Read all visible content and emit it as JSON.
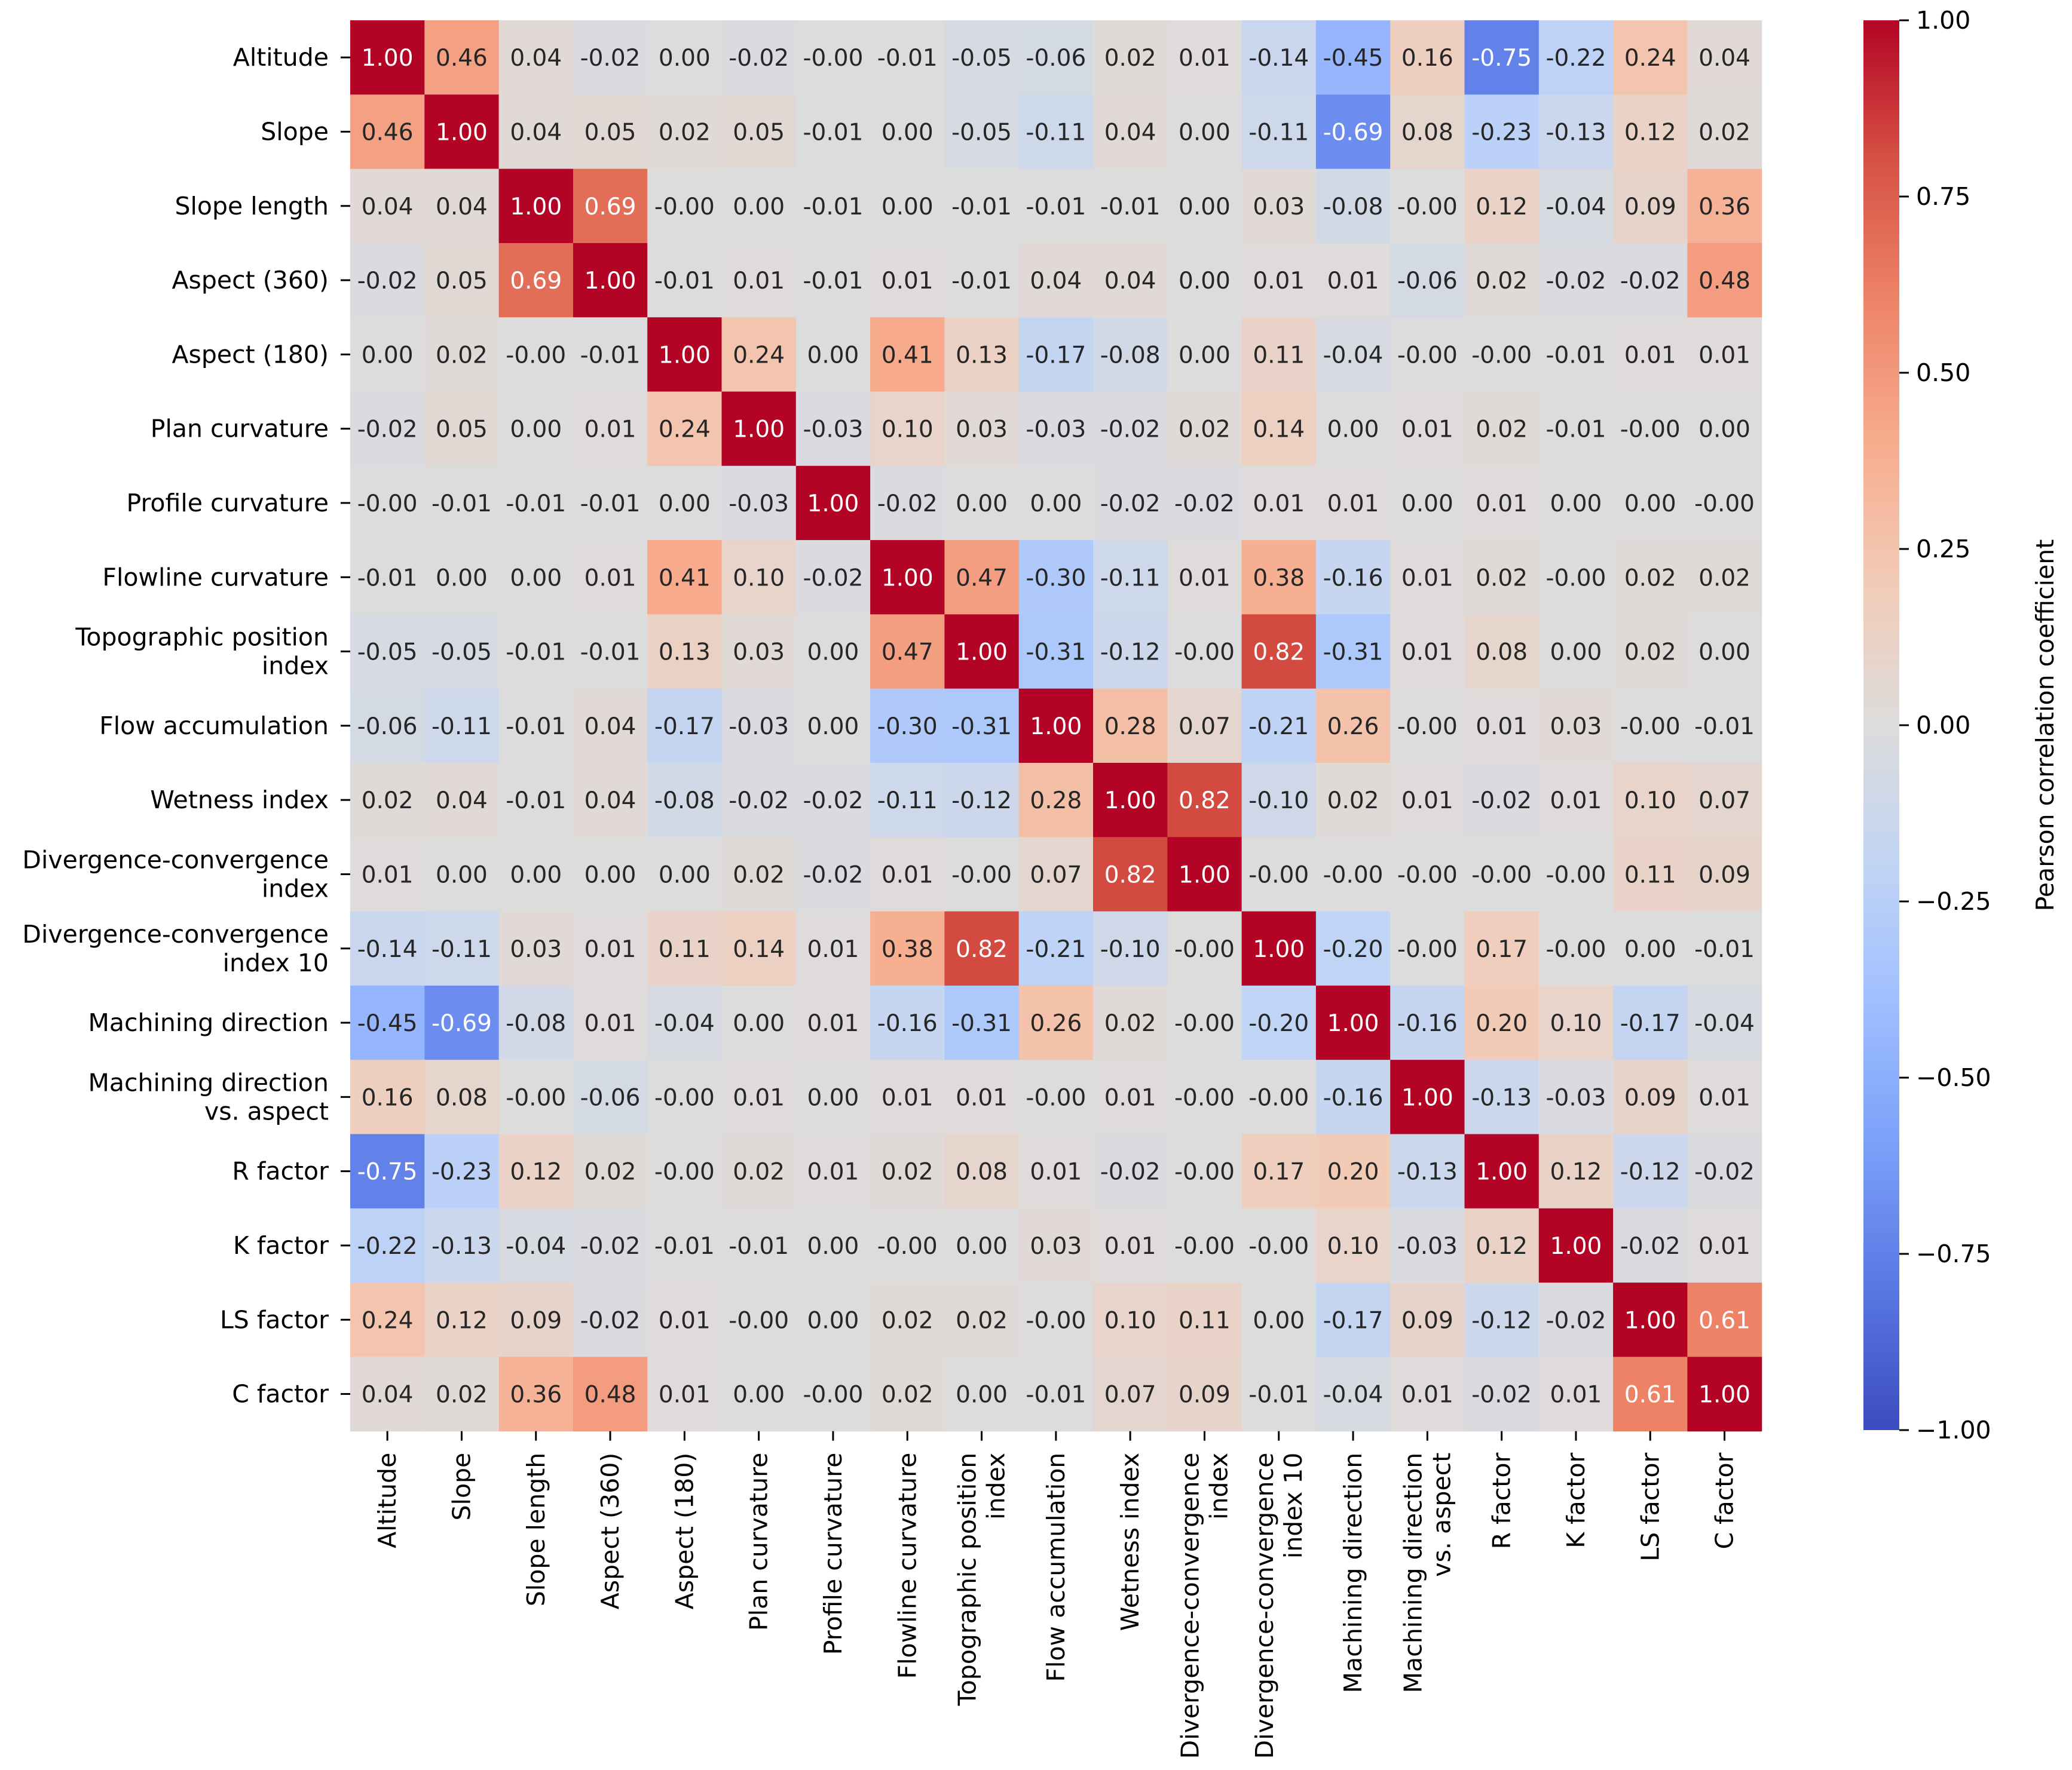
{
  "chart_data": {
    "type": "heatmap",
    "title": "",
    "row_labels": [
      [
        "Altitude"
      ],
      [
        "Slope"
      ],
      [
        "Slope length"
      ],
      [
        "Aspect (360)"
      ],
      [
        "Aspect (180)"
      ],
      [
        "Plan curvature"
      ],
      [
        "Profile curvature"
      ],
      [
        "Flowline curvature"
      ],
      [
        "Topographic position",
        "index"
      ],
      [
        "Flow accumulation"
      ],
      [
        "Wetness index"
      ],
      [
        "Divergence-convergence",
        "index"
      ],
      [
        "Divergence-convergence",
        "index 10"
      ],
      [
        "Machining direction"
      ],
      [
        "Machining direction",
        "vs. aspect"
      ],
      [
        "R factor"
      ],
      [
        "K factor"
      ],
      [
        "LS factor"
      ],
      [
        "C factor"
      ]
    ],
    "col_labels": [
      [
        "Altitude"
      ],
      [
        "Slope"
      ],
      [
        "Slope length"
      ],
      [
        "Aspect (360)"
      ],
      [
        "Aspect (180)"
      ],
      [
        "Plan curvature"
      ],
      [
        "Profile curvature"
      ],
      [
        "Flowline curvature"
      ],
      [
        "Topographic position",
        "index"
      ],
      [
        "Flow accumulation"
      ],
      [
        "Wetness index"
      ],
      [
        "Divergence-convergence",
        "index"
      ],
      [
        "Divergence-convergence",
        "index 10"
      ],
      [
        "Machining direction"
      ],
      [
        "Machining direction",
        "vs. aspect"
      ],
      [
        "R factor"
      ],
      [
        "K factor"
      ],
      [
        "LS factor"
      ],
      [
        "C factor"
      ]
    ],
    "cells": [
      [
        "1.00",
        "0.46",
        "0.04",
        "-0.02",
        "0.00",
        "-0.02",
        "-0.00",
        "-0.01",
        "-0.05",
        "-0.06",
        "0.02",
        "0.01",
        "-0.14",
        "-0.45",
        "0.16",
        "-0.75",
        "-0.22",
        "0.24",
        "0.04"
      ],
      [
        "0.46",
        "1.00",
        "0.04",
        "0.05",
        "0.02",
        "0.05",
        "-0.01",
        "0.00",
        "-0.05",
        "-0.11",
        "0.04",
        "0.00",
        "-0.11",
        "-0.69",
        "0.08",
        "-0.23",
        "-0.13",
        "0.12",
        "0.02"
      ],
      [
        "0.04",
        "0.04",
        "1.00",
        "0.69",
        "-0.00",
        "0.00",
        "-0.01",
        "0.00",
        "-0.01",
        "-0.01",
        "-0.01",
        "0.00",
        "0.03",
        "-0.08",
        "-0.00",
        "0.12",
        "-0.04",
        "0.09",
        "0.36"
      ],
      [
        "-0.02",
        "0.05",
        "0.69",
        "1.00",
        "-0.01",
        "0.01",
        "-0.01",
        "0.01",
        "-0.01",
        "0.04",
        "0.04",
        "0.00",
        "0.01",
        "0.01",
        "-0.06",
        "0.02",
        "-0.02",
        "-0.02",
        "0.48"
      ],
      [
        "0.00",
        "0.02",
        "-0.00",
        "-0.01",
        "1.00",
        "0.24",
        "0.00",
        "0.41",
        "0.13",
        "-0.17",
        "-0.08",
        "0.00",
        "0.11",
        "-0.04",
        "-0.00",
        "-0.00",
        "-0.01",
        "0.01",
        "0.01"
      ],
      [
        "-0.02",
        "0.05",
        "0.00",
        "0.01",
        "0.24",
        "1.00",
        "-0.03",
        "0.10",
        "0.03",
        "-0.03",
        "-0.02",
        "0.02",
        "0.14",
        "0.00",
        "0.01",
        "0.02",
        "-0.01",
        "-0.00",
        "0.00"
      ],
      [
        "-0.00",
        "-0.01",
        "-0.01",
        "-0.01",
        "0.00",
        "-0.03",
        "1.00",
        "-0.02",
        "0.00",
        "0.00",
        "-0.02",
        "-0.02",
        "0.01",
        "0.01",
        "0.00",
        "0.01",
        "0.00",
        "0.00",
        "-0.00"
      ],
      [
        "-0.01",
        "0.00",
        "0.00",
        "0.01",
        "0.41",
        "0.10",
        "-0.02",
        "1.00",
        "0.47",
        "-0.30",
        "-0.11",
        "0.01",
        "0.38",
        "-0.16",
        "0.01",
        "0.02",
        "-0.00",
        "0.02",
        "0.02"
      ],
      [
        "-0.05",
        "-0.05",
        "-0.01",
        "-0.01",
        "0.13",
        "0.03",
        "0.00",
        "0.47",
        "1.00",
        "-0.31",
        "-0.12",
        "-0.00",
        "0.82",
        "-0.31",
        "0.01",
        "0.08",
        "0.00",
        "0.02",
        "0.00"
      ],
      [
        "-0.06",
        "-0.11",
        "-0.01",
        "0.04",
        "-0.17",
        "-0.03",
        "0.00",
        "-0.30",
        "-0.31",
        "1.00",
        "0.28",
        "0.07",
        "-0.21",
        "0.26",
        "-0.00",
        "0.01",
        "0.03",
        "-0.00",
        "-0.01"
      ],
      [
        "0.02",
        "0.04",
        "-0.01",
        "0.04",
        "-0.08",
        "-0.02",
        "-0.02",
        "-0.11",
        "-0.12",
        "0.28",
        "1.00",
        "0.82",
        "-0.10",
        "0.02",
        "0.01",
        "-0.02",
        "0.01",
        "0.10",
        "0.07"
      ],
      [
        "0.01",
        "0.00",
        "0.00",
        "0.00",
        "0.00",
        "0.02",
        "-0.02",
        "0.01",
        "-0.00",
        "0.07",
        "0.82",
        "1.00",
        "-0.00",
        "-0.00",
        "-0.00",
        "-0.00",
        "-0.00",
        "0.11",
        "0.09"
      ],
      [
        "-0.14",
        "-0.11",
        "0.03",
        "0.01",
        "0.11",
        "0.14",
        "0.01",
        "0.38",
        "0.82",
        "-0.21",
        "-0.10",
        "-0.00",
        "1.00",
        "-0.20",
        "-0.00",
        "0.17",
        "-0.00",
        "0.00",
        "-0.01"
      ],
      [
        "-0.45",
        "-0.69",
        "-0.08",
        "0.01",
        "-0.04",
        "0.00",
        "0.01",
        "-0.16",
        "-0.31",
        "0.26",
        "0.02",
        "-0.00",
        "-0.20",
        "1.00",
        "-0.16",
        "0.20",
        "0.10",
        "-0.17",
        "-0.04"
      ],
      [
        "0.16",
        "0.08",
        "-0.00",
        "-0.06",
        "-0.00",
        "0.01",
        "0.00",
        "0.01",
        "0.01",
        "-0.00",
        "0.01",
        "-0.00",
        "-0.00",
        "-0.16",
        "1.00",
        "-0.13",
        "-0.03",
        "0.09",
        "0.01"
      ],
      [
        "-0.75",
        "-0.23",
        "0.12",
        "0.02",
        "-0.00",
        "0.02",
        "0.01",
        "0.02",
        "0.08",
        "0.01",
        "-0.02",
        "-0.00",
        "0.17",
        "0.20",
        "-0.13",
        "1.00",
        "0.12",
        "-0.12",
        "-0.02"
      ],
      [
        "-0.22",
        "-0.13",
        "-0.04",
        "-0.02",
        "-0.01",
        "-0.01",
        "0.00",
        "-0.00",
        "0.00",
        "0.03",
        "0.01",
        "-0.00",
        "-0.00",
        "0.10",
        "-0.03",
        "0.12",
        "1.00",
        "-0.02",
        "0.01"
      ],
      [
        "0.24",
        "0.12",
        "0.09",
        "-0.02",
        "0.01",
        "-0.00",
        "0.00",
        "0.02",
        "0.02",
        "-0.00",
        "0.10",
        "0.11",
        "0.00",
        "-0.17",
        "0.09",
        "-0.12",
        "-0.02",
        "1.00",
        "0.61"
      ],
      [
        "0.04",
        "0.02",
        "0.36",
        "0.48",
        "0.01",
        "0.00",
        "-0.00",
        "0.02",
        "0.00",
        "-0.01",
        "0.07",
        "0.09",
        "-0.01",
        "-0.04",
        "0.01",
        "-0.02",
        "0.01",
        "0.61",
        "1.00"
      ]
    ],
    "colorbar": {
      "label": "Pearson correlation coefficient",
      "range": [
        -1.0,
        1.0
      ],
      "ticks": [
        "1.00",
        "0.75",
        "0.50",
        "0.25",
        "0.00",
        "−0.25",
        "−0.50",
        "−0.75",
        "−1.00"
      ],
      "tick_values": [
        1.0,
        0.75,
        0.5,
        0.25,
        0.0,
        -0.25,
        -0.5,
        -0.75,
        -1.0
      ],
      "colormap": "coolwarm",
      "colors": [
        "#3b4cc0",
        "#5977e3",
        "#7b9ff9",
        "#9ebeff",
        "#c0d4f5",
        "#dddcdc",
        "#f2cbb7",
        "#f7ac8e",
        "#ee8468",
        "#d65244",
        "#b40426"
      ]
    },
    "xlabel": "",
    "ylabel": ""
  }
}
